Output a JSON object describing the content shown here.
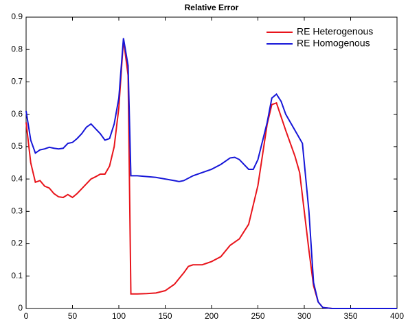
{
  "chart_data": {
    "type": "line",
    "title": "Relative Error",
    "xlim": [
      0,
      400
    ],
    "xticks": [
      0,
      50,
      100,
      150,
      200,
      250,
      300,
      350,
      400
    ],
    "ylim": [
      0,
      0.9
    ],
    "yticks": [
      0,
      0.1,
      0.2,
      0.3,
      0.4,
      0.5,
      0.6,
      0.7,
      0.8,
      0.9
    ],
    "grid": false,
    "legend": "northeast",
    "series": [
      {
        "name": "RE Heterogenous",
        "color": "#e8141b",
        "x": [
          0,
          5,
          10,
          15,
          20,
          25,
          30,
          35,
          40,
          45,
          50,
          55,
          60,
          65,
          70,
          75,
          80,
          85,
          90,
          95,
          100,
          105,
          110,
          113,
          120,
          130,
          140,
          150,
          160,
          170,
          175,
          180,
          190,
          200,
          210,
          220,
          230,
          240,
          250,
          260,
          265,
          270,
          280,
          290,
          295,
          300,
          305,
          310,
          315,
          320,
          330,
          400
        ],
        "values": [
          0.575,
          0.45,
          0.39,
          0.395,
          0.378,
          0.372,
          0.355,
          0.345,
          0.343,
          0.352,
          0.343,
          0.355,
          0.37,
          0.385,
          0.4,
          0.407,
          0.415,
          0.415,
          0.44,
          0.5,
          0.62,
          0.83,
          0.72,
          0.045,
          0.045,
          0.046,
          0.048,
          0.055,
          0.075,
          0.11,
          0.13,
          0.135,
          0.135,
          0.145,
          0.16,
          0.195,
          0.215,
          0.26,
          0.38,
          0.57,
          0.63,
          0.635,
          0.55,
          0.47,
          0.42,
          0.3,
          0.18,
          0.07,
          0.02,
          0.003,
          0,
          0
        ]
      },
      {
        "name": "RE Homogenous",
        "color": "#1616d8",
        "x": [
          0,
          5,
          10,
          15,
          20,
          25,
          30,
          35,
          40,
          45,
          50,
          55,
          60,
          65,
          70,
          75,
          80,
          85,
          90,
          95,
          100,
          105,
          110,
          113,
          120,
          140,
          160,
          165,
          170,
          180,
          200,
          210,
          220,
          225,
          230,
          240,
          245,
          250,
          260,
          265,
          270,
          275,
          280,
          290,
          298,
          305,
          310,
          315,
          320,
          330,
          400
        ],
        "values": [
          0.61,
          0.52,
          0.48,
          0.49,
          0.493,
          0.498,
          0.495,
          0.493,
          0.495,
          0.51,
          0.513,
          0.525,
          0.54,
          0.56,
          0.57,
          0.555,
          0.54,
          0.52,
          0.525,
          0.57,
          0.65,
          0.835,
          0.75,
          0.41,
          0.41,
          0.405,
          0.395,
          0.392,
          0.395,
          0.41,
          0.43,
          0.445,
          0.465,
          0.467,
          0.46,
          0.43,
          0.43,
          0.46,
          0.575,
          0.65,
          0.662,
          0.64,
          0.6,
          0.55,
          0.51,
          0.3,
          0.08,
          0.02,
          0.003,
          0,
          0
        ]
      }
    ]
  }
}
